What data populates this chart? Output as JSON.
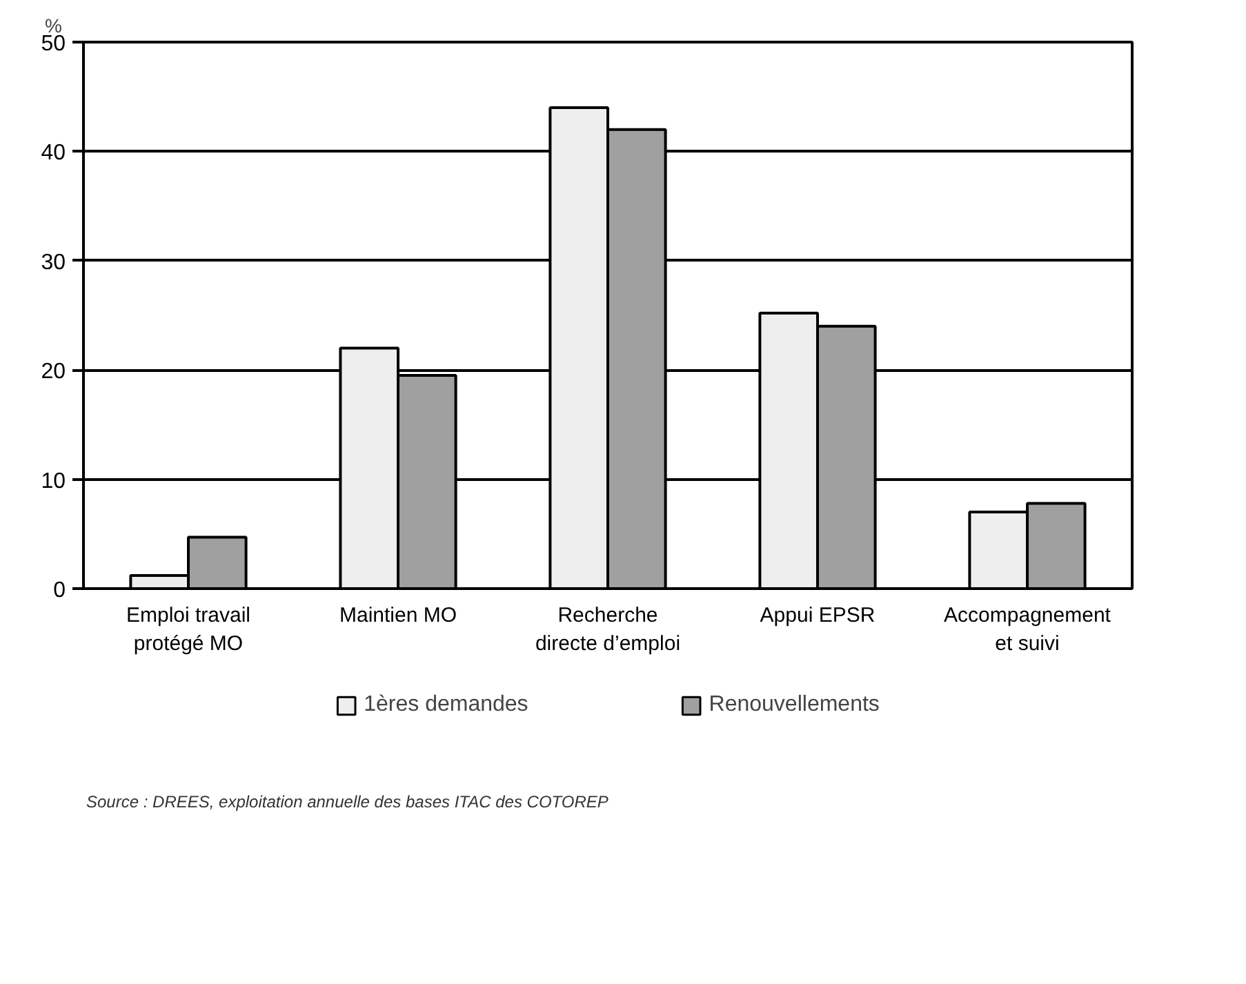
{
  "chart_data": {
    "type": "bar",
    "ylabel": "%",
    "categories": [
      "Emploi travail\nprotégé MO",
      "Maintien MO",
      "Recherche\ndirecte d’emploi",
      "Appui EPSR",
      "Accompagnement\net suivi"
    ],
    "series": [
      {
        "name": "1ères demandes",
        "color": "#eeeeee",
        "values": [
          1.2,
          22,
          44,
          25.2,
          7
        ]
      },
      {
        "name": "Renouvellements",
        "color": "#a0a0a0",
        "values": [
          4.7,
          19.5,
          42,
          24,
          7.8
        ]
      }
    ],
    "ylim": [
      0,
      50
    ],
    "yticks": [
      0,
      10,
      20,
      30,
      40,
      50
    ],
    "grid": "y",
    "legend": "bottom",
    "annotations": [
      "Source : DREES, exploitation annuelle des bases ITAC des COTOREP"
    ]
  }
}
